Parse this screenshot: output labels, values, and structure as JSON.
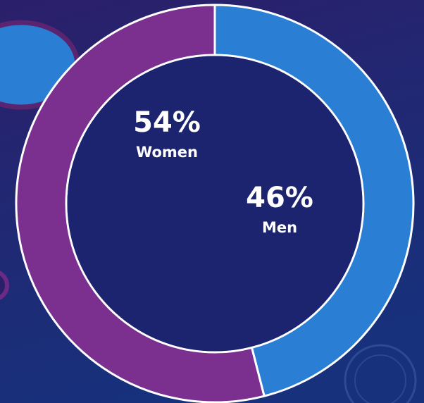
{
  "chart_data": {
    "type": "pie",
    "donut": true,
    "categories": [
      "Men",
      "Women"
    ],
    "values": [
      46,
      54
    ],
    "value_labels": [
      "46%",
      "54%"
    ],
    "colors": [
      "#2a7fd4",
      "#7b2f8f"
    ]
  }
}
